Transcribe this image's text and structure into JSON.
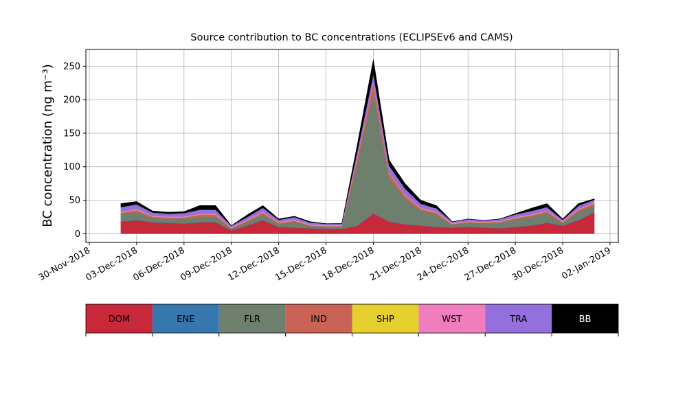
{
  "chart_data": {
    "type": "stacked-area",
    "title": "Source contribution to BC concentrations (ECLIPSEv6 and CAMS)",
    "y_label": "BC concentration (ng m⁻³)",
    "x": [
      "2018-12-02",
      "2018-12-03",
      "2018-12-04",
      "2018-12-05",
      "2018-12-06",
      "2018-12-07",
      "2018-12-08",
      "2018-12-09",
      "2018-12-10",
      "2018-12-11",
      "2018-12-12",
      "2018-12-13",
      "2018-12-14",
      "2018-12-15",
      "2018-12-16",
      "2018-12-17",
      "2018-12-18",
      "2018-12-19",
      "2018-12-20",
      "2018-12-21",
      "2018-12-22",
      "2018-12-23",
      "2018-12-24",
      "2018-12-25",
      "2018-12-26",
      "2018-12-27",
      "2018-12-28",
      "2018-12-29",
      "2018-12-30",
      "2018-12-31",
      "2019-01-01"
    ],
    "xlim": [
      "2018-11-30",
      "2019-01-02"
    ],
    "xticks": [
      {
        "value": "2018-11-30",
        "label": "30-Nov-2018"
      },
      {
        "value": "2018-12-03",
        "label": "03-Dec-2018"
      },
      {
        "value": "2018-12-06",
        "label": "06-Dec-2018"
      },
      {
        "value": "2018-12-09",
        "label": "09-Dec-2018"
      },
      {
        "value": "2018-12-12",
        "label": "12-Dec-2018"
      },
      {
        "value": "2018-12-15",
        "label": "15-Dec-2018"
      },
      {
        "value": "2018-12-18",
        "label": "18-Dec-2018"
      },
      {
        "value": "2018-12-21",
        "label": "21-Dec-2018"
      },
      {
        "value": "2018-12-24",
        "label": "24-Dec-2018"
      },
      {
        "value": "2018-12-27",
        "label": "27-Dec-2018"
      },
      {
        "value": "2018-12-30",
        "label": "30-Dec-2018"
      },
      {
        "value": "2019-01-02",
        "label": "02-Jan-2019"
      }
    ],
    "ylim": [
      -13,
      275
    ],
    "yticks": [
      0,
      50,
      100,
      150,
      200,
      250
    ],
    "grid": true,
    "series": [
      {
        "name": "DOM",
        "color": "#c8293a",
        "values": [
          18,
          20,
          17,
          16,
          15,
          17,
          17,
          5,
          12,
          20,
          10,
          9,
          8,
          7,
          7,
          12,
          30,
          18,
          14,
          12,
          10,
          9,
          10,
          9,
          8,
          10,
          12,
          16,
          12,
          20,
          32
        ]
      },
      {
        "name": "ENE",
        "color": "#3777b0",
        "values": [
          0.5,
          0.5,
          0.5,
          0.5,
          0.5,
          0.5,
          0.5,
          0.5,
          0.5,
          0.5,
          0.5,
          0.5,
          0.5,
          0.5,
          0.5,
          0.5,
          0.5,
          0.5,
          0.5,
          0.5,
          0.5,
          0.5,
          0.5,
          0.5,
          0.5,
          0.5,
          0.5,
          0.5,
          0.5,
          0.5,
          0.5
        ]
      },
      {
        "name": "FLR",
        "color": "#6e7f6e",
        "values": [
          10,
          12,
          6,
          6,
          7,
          8,
          8,
          2,
          5,
          8,
          4,
          8,
          3,
          3,
          3,
          95,
          180,
          65,
          38,
          22,
          18,
          4,
          6,
          6,
          8,
          11,
          13,
          14,
          4,
          12,
          10
        ]
      },
      {
        "name": "IND",
        "color": "#c96355",
        "values": [
          3,
          3,
          2,
          2,
          2,
          3,
          3,
          1,
          2,
          3,
          2,
          2,
          1,
          1,
          1,
          8,
          15,
          7,
          5,
          3,
          3,
          1,
          1,
          1,
          1,
          2,
          2,
          3,
          1,
          3,
          3
        ]
      },
      {
        "name": "SHP",
        "color": "#e5cf2c",
        "values": [
          0.3,
          0.3,
          0.3,
          0.3,
          0.3,
          0.3,
          0.3,
          0.3,
          0.3,
          0.3,
          0.3,
          0.3,
          0.3,
          0.3,
          0.3,
          0.3,
          0.3,
          0.3,
          0.3,
          0.3,
          0.3,
          0.3,
          0.3,
          0.3,
          0.3,
          0.3,
          0.3,
          0.3,
          0.3,
          0.3,
          0.3
        ]
      },
      {
        "name": "WST",
        "color": "#f07dbd",
        "values": [
          1,
          1,
          1,
          1,
          1,
          1,
          1,
          1,
          1,
          1,
          1,
          1,
          1,
          1,
          1,
          1,
          1,
          1,
          1,
          1,
          1,
          1,
          1,
          1,
          1,
          1,
          1,
          1,
          1,
          1,
          1
        ]
      },
      {
        "name": "TRA",
        "color": "#9370db",
        "values": [
          7,
          7,
          5,
          4,
          5,
          6,
          6,
          2,
          4,
          6,
          3,
          4,
          3,
          2,
          2,
          8,
          12,
          10,
          9,
          6,
          5,
          2,
          3,
          2,
          3,
          4,
          5,
          5,
          2,
          5,
          4
        ]
      },
      {
        "name": "BB",
        "color": "#000000",
        "values": [
          5.2,
          4.2,
          2.2,
          2.2,
          2.2,
          6.2,
          6.2,
          0.2,
          3.2,
          3.2,
          1.2,
          1.2,
          1.2,
          0.2,
          0.5,
          10.2,
          21.2,
          8.2,
          7.2,
          5.2,
          4.2,
          0.2,
          0.2,
          0.2,
          0.2,
          1.2,
          4.2,
          5.2,
          1.2,
          3.2,
          1.2
        ]
      }
    ]
  }
}
